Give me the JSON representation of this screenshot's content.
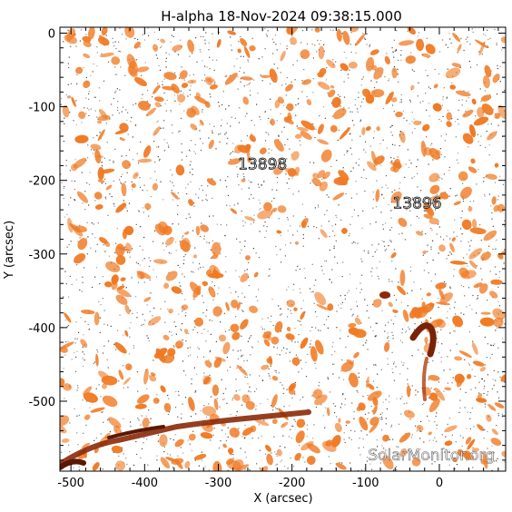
{
  "title": "H-alpha 18-Nov-2024 09:38:15.000",
  "xlabel": "X (arcsec)",
  "ylabel": "Y (arcsec)",
  "watermark": "SolarMonitor.org",
  "x_axis": {
    "range": [
      -515,
      90
    ],
    "ticks": [
      -500,
      -400,
      -300,
      -200,
      -100,
      0
    ]
  },
  "y_axis": {
    "range": [
      -595,
      8
    ],
    "ticks": [
      0,
      -100,
      -200,
      -300,
      -400,
      -500
    ]
  },
  "regions": [
    {
      "label": "13898",
      "x": -240,
      "y": -185
    },
    {
      "label": "13896",
      "x": -30,
      "y": -238
    }
  ],
  "colors": {
    "background": "#ffffff",
    "plage": "#f07a23",
    "filament": "#8b2a08",
    "speckle": "#1a0f08",
    "axis": "#000000"
  }
}
